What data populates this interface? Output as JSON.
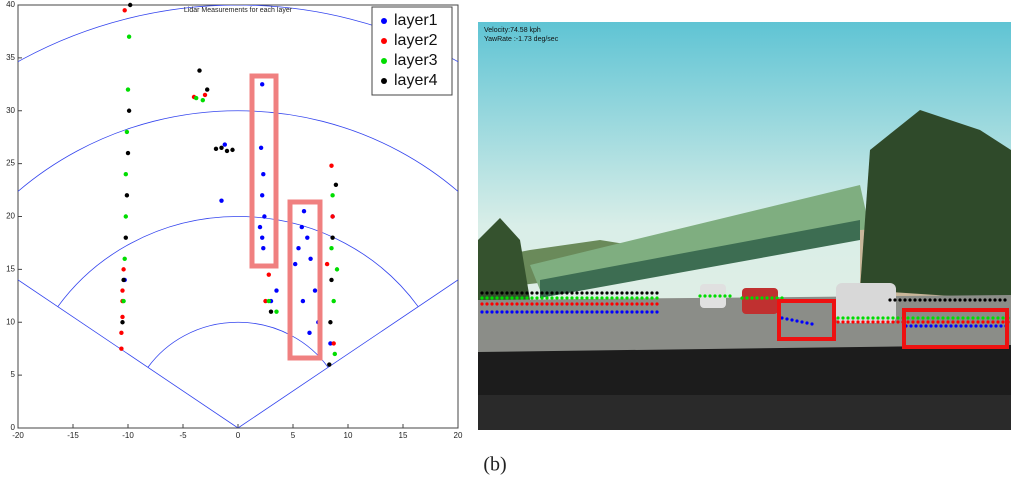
{
  "chart_data": {
    "type": "scatter",
    "title": "Lidar Measurements for each layer",
    "xlim": [
      -20,
      20
    ],
    "ylim": [
      0,
      40
    ],
    "xticks": [
      -20,
      -15,
      -10,
      -5,
      0,
      5,
      10,
      15,
      20
    ],
    "yticks": [
      0,
      5,
      10,
      15,
      20,
      25,
      30,
      35,
      40
    ],
    "legend": "upper right",
    "series": [
      {
        "name": "layer1",
        "color": "#0000ff",
        "x": [
          2.2,
          2.1,
          2.3,
          2.2,
          2.4,
          2.2,
          2.3,
          2.0,
          -1.5,
          -1.2,
          5.2,
          5.5,
          5.8,
          6.0,
          6.3,
          6.6,
          7.0,
          7.3,
          5.9,
          6.5,
          3.0,
          3.5,
          -10.3,
          8.4,
          8.6
        ],
        "values": [
          32.5,
          26.5,
          24,
          22,
          20,
          18,
          17,
          19,
          21.5,
          26.8,
          15.5,
          17,
          19,
          20.5,
          18,
          16,
          13,
          10,
          12,
          9,
          12,
          13,
          14,
          8,
          20
        ]
      },
      {
        "name": "layer2",
        "color": "#ff0000",
        "x": [
          -10.6,
          -10.6,
          -10.5,
          -10.5,
          -10.5,
          -10.4,
          -4,
          -3,
          2.5,
          2.8,
          8.1,
          8.5,
          8.6,
          8.7,
          -10.3
        ],
        "values": [
          7.5,
          9,
          10.5,
          12,
          13,
          15,
          31.3,
          31.5,
          12,
          14.5,
          15.5,
          24.8,
          20,
          8,
          39.5
        ]
      },
      {
        "name": "layer3",
        "color": "#00dd00",
        "x": [
          -10.4,
          -10.3,
          -10.2,
          -10.2,
          -10.1,
          -10.0,
          -9.9,
          -3.8,
          -3.2,
          2.8,
          3.5,
          8.8,
          8.7,
          8.5,
          8.6,
          9.0
        ],
        "values": [
          12,
          16,
          20,
          24,
          28,
          32,
          37,
          31.2,
          31.0,
          12,
          11,
          7,
          12,
          17,
          22,
          15
        ]
      },
      {
        "name": "layer4",
        "color": "#000000",
        "x": [
          -10.5,
          -10.4,
          -10.2,
          -10.1,
          -10.0,
          -9.9,
          -9.8,
          -3.5,
          -2.8,
          -0.5,
          -1,
          -2,
          -1.5,
          3.0,
          8.3,
          8.4,
          8.5,
          8.6,
          8.9
        ],
        "values": [
          10,
          14,
          18,
          22,
          26,
          30,
          40,
          33.8,
          32,
          26.3,
          26.2,
          26.4,
          26.5,
          11,
          6,
          10,
          14,
          18,
          23
        ]
      }
    ]
  },
  "camera_image": {
    "velocity": "Velocity:74.58 kph",
    "yaw_rate": "YawRate :-1.73 deg/sec"
  },
  "caption": "(b)"
}
